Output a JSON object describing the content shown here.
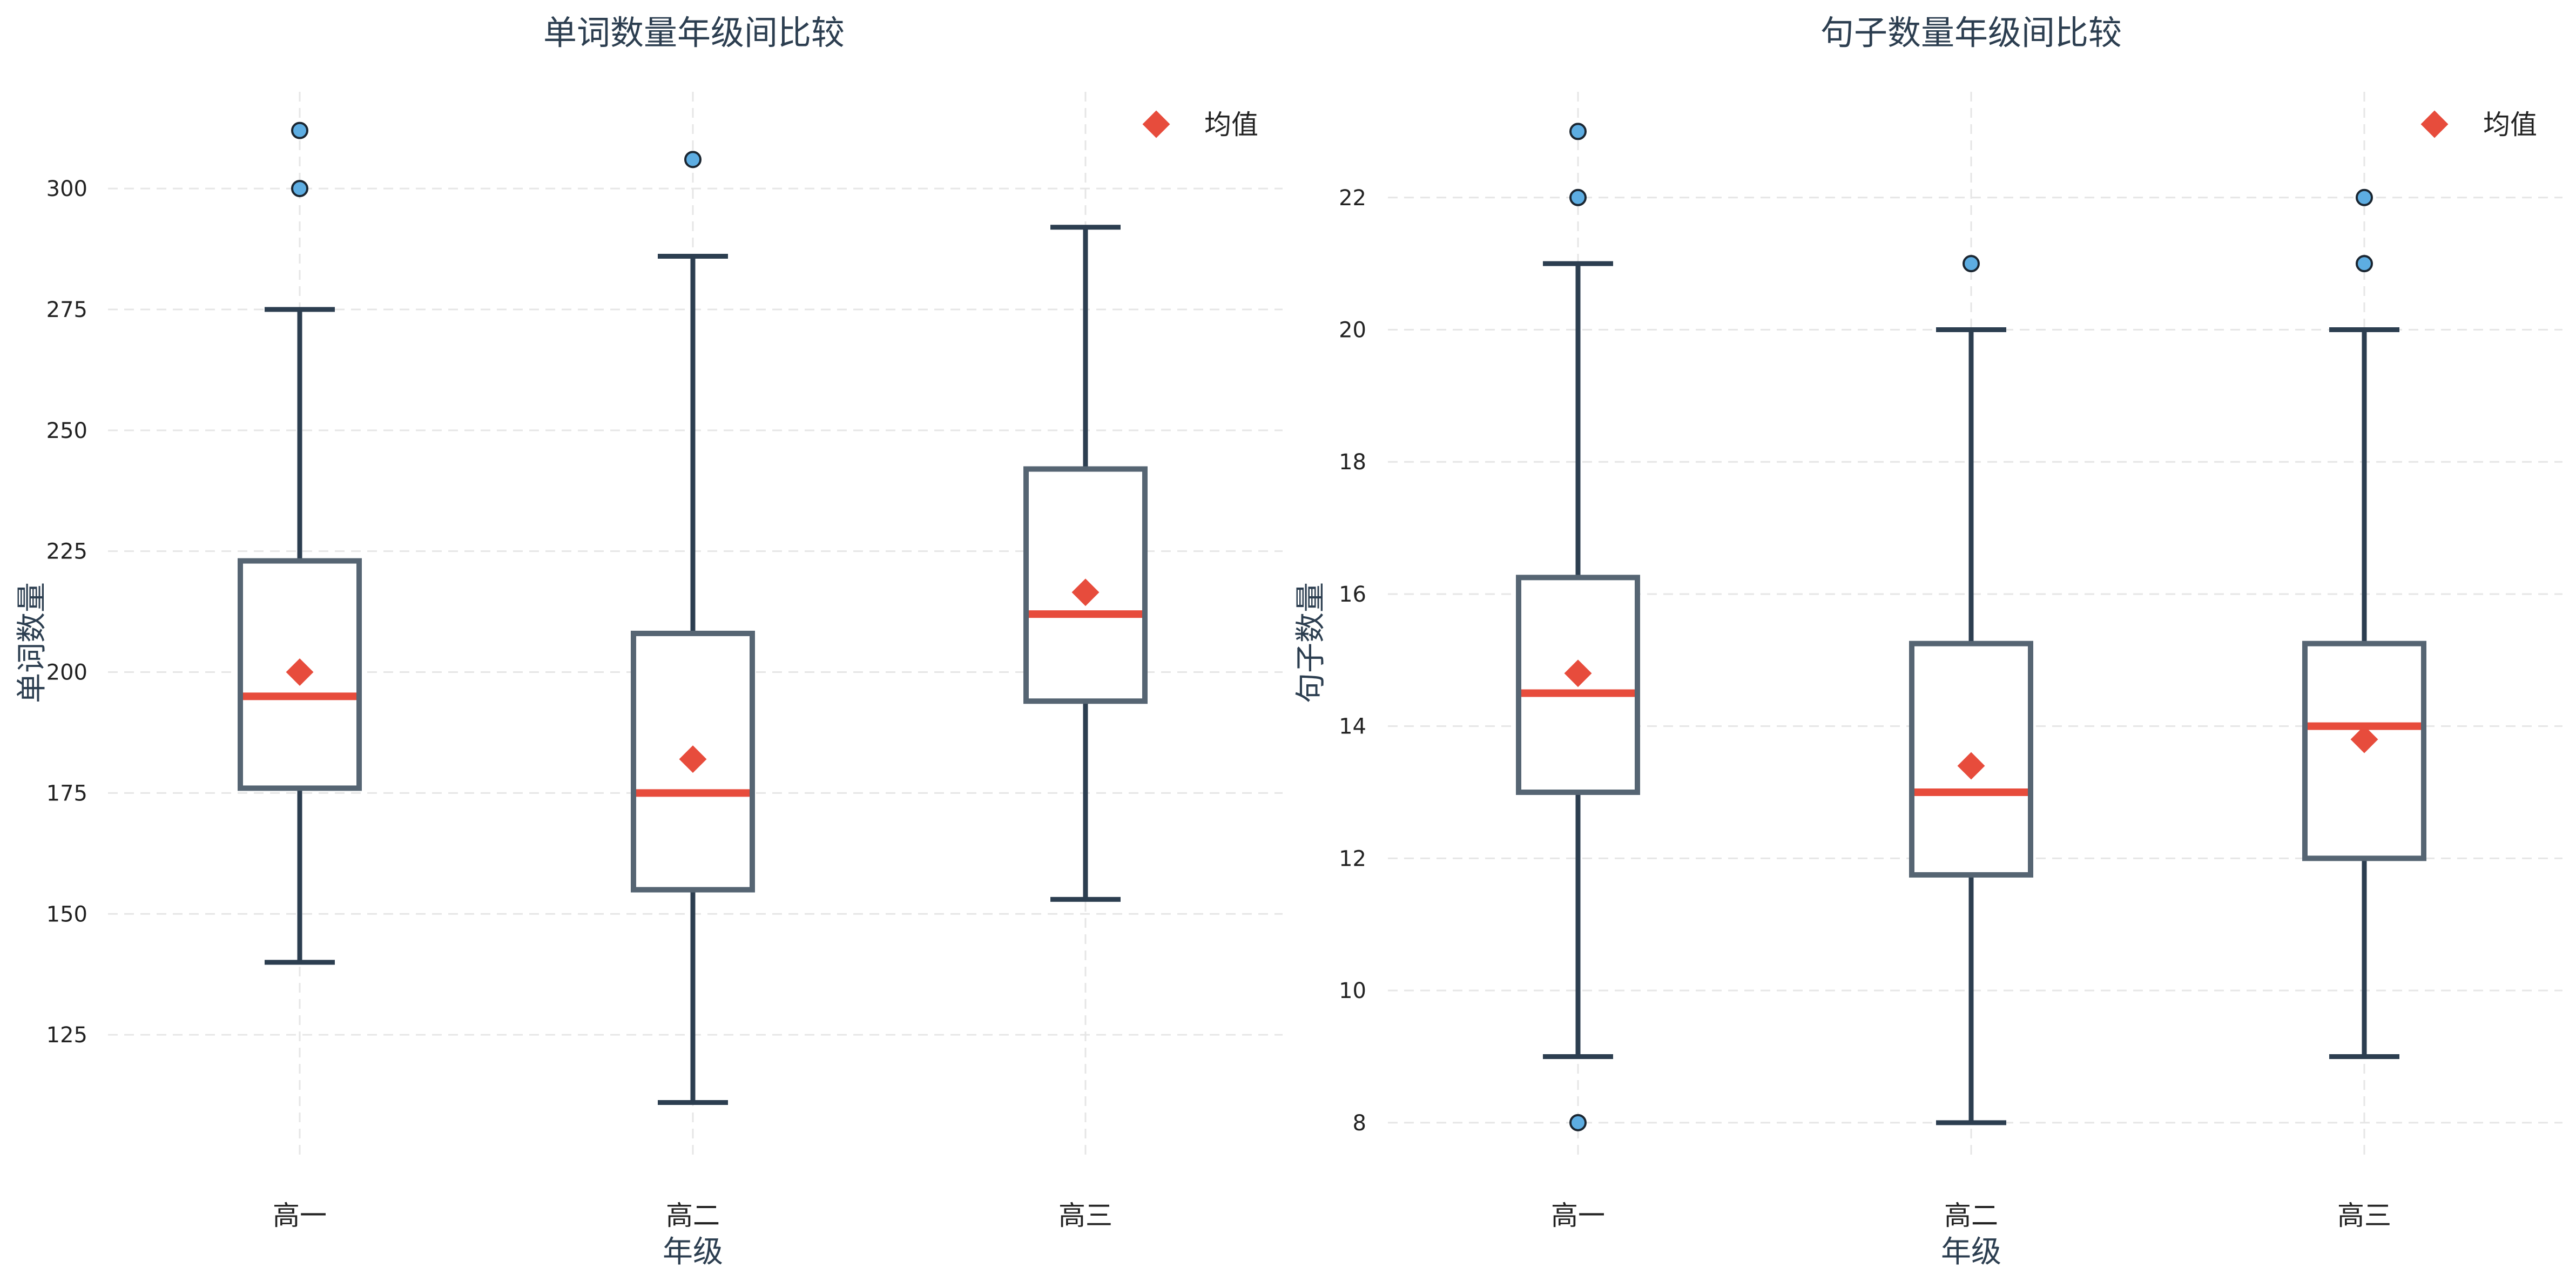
{
  "colors": {
    "box": "#566573",
    "whisker": "#2c3e50",
    "median": "#e74c3c",
    "mean": "#e74c3c",
    "outlier_fill": "#5dade2",
    "outlier_edge": "#1b2631",
    "text": "#2c3e50"
  },
  "chart_data": [
    {
      "type": "box",
      "title": "单词数量年级间比较",
      "xlabel": "年级",
      "ylabel": "单词数量",
      "categories": [
        "高一",
        "高二",
        "高三"
      ],
      "ylim": [
        100,
        320
      ],
      "yticks": [
        125,
        150,
        175,
        200,
        225,
        250,
        275,
        300
      ],
      "grid": true,
      "legend": {
        "label": "均值",
        "position": "top-right"
      },
      "boxes": [
        {
          "label": "高一",
          "whislo": 140,
          "q1": 176,
          "median": 195,
          "q3": 223,
          "whishi": 275,
          "mean": 200,
          "fliers": [
            300,
            312
          ]
        },
        {
          "label": "高二",
          "whislo": 111,
          "q1": 155,
          "median": 175,
          "q3": 208,
          "whishi": 286,
          "mean": 182,
          "fliers": [
            306
          ]
        },
        {
          "label": "高三",
          "whislo": 153,
          "q1": 194,
          "median": 212,
          "q3": 242,
          "whishi": 292,
          "mean": 216.5,
          "fliers": []
        }
      ]
    },
    {
      "type": "box",
      "title": "句子数量年级间比较",
      "xlabel": "年级",
      "ylabel": "句子数量",
      "categories": [
        "高一",
        "高二",
        "高三"
      ],
      "ylim": [
        7.5,
        23.6
      ],
      "yticks": [
        8,
        10,
        12,
        14,
        16,
        18,
        20,
        22
      ],
      "grid": true,
      "legend": {
        "label": "均值",
        "position": "top-right"
      },
      "boxes": [
        {
          "label": "高一",
          "whislo": 9,
          "q1": 13,
          "median": 14.5,
          "q3": 16.25,
          "whishi": 21,
          "mean": 14.8,
          "fliers": [
            8,
            22,
            23
          ]
        },
        {
          "label": "高二",
          "whislo": 8,
          "q1": 11.75,
          "median": 13,
          "q3": 15.25,
          "whishi": 20,
          "mean": 13.4,
          "fliers": [
            21
          ]
        },
        {
          "label": "高三",
          "whislo": 9,
          "q1": 12,
          "median": 14,
          "q3": 15.25,
          "whishi": 20,
          "mean": 13.8,
          "fliers": [
            21,
            22
          ]
        }
      ]
    }
  ]
}
